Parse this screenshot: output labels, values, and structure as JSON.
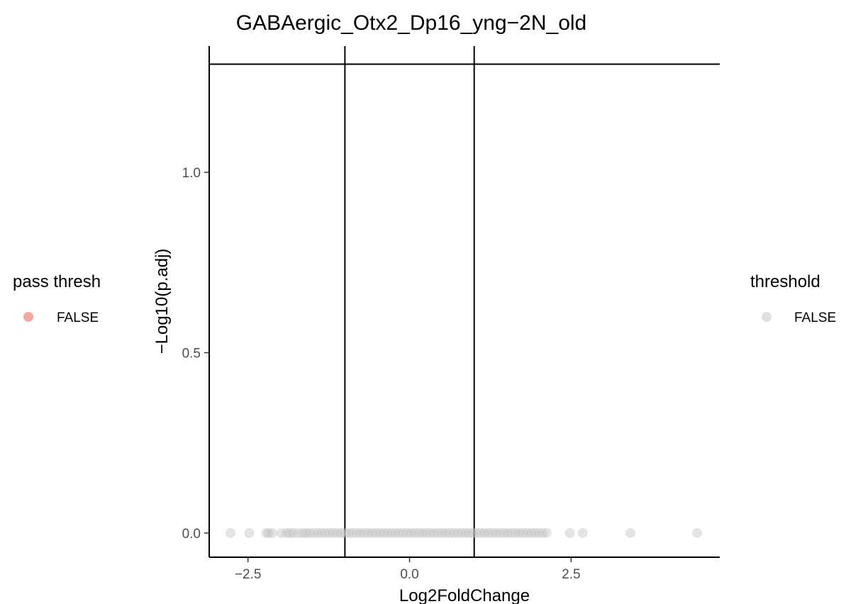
{
  "chart_data": {
    "type": "scatter",
    "title": "GABAergic_Otx2_Dp16_yng−2N_old",
    "xlabel": "Log2FoldChange",
    "ylabel": "−Log10(p.adj)",
    "xlim": [
      -3.1,
      4.8
    ],
    "ylim": [
      -0.067,
      1.35
    ],
    "x_ticks": [
      -2.5,
      0.0,
      2.5
    ],
    "x_tick_labels": [
      "−2.5",
      "0.0",
      "2.5"
    ],
    "y_ticks": [
      0.0,
      0.5,
      1.0
    ],
    "y_tick_labels": [
      "0.0",
      "0.5",
      "1.0"
    ],
    "grid": false,
    "reference_lines": {
      "vertical": [
        -1.0,
        1.0
      ],
      "horizontal": [
        1.3
      ]
    },
    "series": [
      {
        "name": "FALSE",
        "color": "#bebebe",
        "x": [
          -2.77,
          -2.48,
          -2.22,
          -2.18,
          -2.12,
          -1.98,
          -1.9,
          -1.85,
          -1.8,
          -1.72,
          -1.65,
          -1.6,
          -1.55,
          -1.48,
          -1.42,
          -1.36,
          -1.3,
          -1.24,
          -1.18,
          -1.12,
          -1.06,
          -1.0,
          -0.94,
          -0.88,
          -0.82,
          -0.76,
          -0.7,
          -0.64,
          -0.58,
          -0.52,
          -0.46,
          -0.4,
          -0.34,
          -0.28,
          -0.22,
          -0.16,
          -0.1,
          -0.04,
          0.02,
          0.08,
          0.14,
          0.2,
          0.26,
          0.32,
          0.38,
          0.44,
          0.5,
          0.56,
          0.62,
          0.68,
          0.74,
          0.8,
          0.86,
          0.92,
          0.98,
          1.04,
          1.1,
          1.16,
          1.22,
          1.28,
          1.34,
          1.4,
          1.46,
          1.52,
          1.58,
          1.64,
          1.7,
          1.76,
          1.82,
          1.88,
          1.94,
          2.0,
          2.06,
          2.12,
          2.48,
          2.68,
          3.42,
          4.45
        ],
        "y": [
          0.0,
          0.0,
          0.0,
          0.0,
          0.0,
          0.0,
          0.0,
          0.0,
          0.0,
          0.0,
          0.0,
          0.0,
          0.0,
          0.0,
          0.0,
          0.0,
          0.0,
          0.0,
          0.0,
          0.0,
          0.0,
          0.0,
          0.0,
          0.0,
          0.0,
          0.0,
          0.0,
          0.0,
          0.0,
          0.0,
          0.0,
          0.0,
          0.0,
          0.0,
          0.0,
          0.0,
          0.0,
          0.0,
          0.0,
          0.0,
          0.0,
          0.0,
          0.0,
          0.0,
          0.0,
          0.0,
          0.0,
          0.0,
          0.0,
          0.0,
          0.0,
          0.0,
          0.0,
          0.0,
          0.0,
          0.0,
          0.0,
          0.0,
          0.0,
          0.0,
          0.0,
          0.0,
          0.0,
          0.0,
          0.0,
          0.0,
          0.0,
          0.0,
          0.0,
          0.0,
          0.0,
          0.0,
          0.0,
          0.0,
          0.0,
          0.0,
          0.0,
          0.0
        ]
      }
    ],
    "legends": [
      {
        "title": "pass thresh",
        "position": "left",
        "items": [
          {
            "label": "FALSE",
            "color": "#f8a8a2"
          }
        ]
      },
      {
        "title": "threshold",
        "position": "right",
        "items": [
          {
            "label": "FALSE",
            "color": "#e0e0e0"
          }
        ]
      }
    ]
  }
}
